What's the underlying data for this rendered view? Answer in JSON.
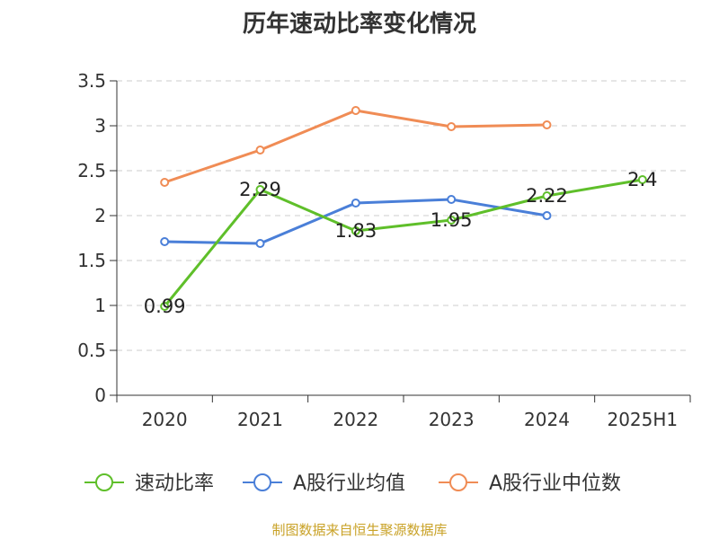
{
  "title": "历年速动比率变化情况",
  "source": "制图数据来自恒生聚源数据库",
  "chart_data": {
    "type": "line",
    "categories": [
      "2020",
      "2021",
      "2022",
      "2023",
      "2024",
      "2025H1"
    ],
    "y_ticks": [
      "0",
      "0.5",
      "1",
      "1.5",
      "2",
      "2.5",
      "3",
      "3.5"
    ],
    "ylim": [
      0,
      3.5
    ],
    "grid": true,
    "legend_position": "bottom",
    "series": [
      {
        "name": "速动比率",
        "color": "#5fbf2a",
        "values": [
          0.99,
          2.29,
          1.83,
          1.95,
          2.22,
          2.4
        ],
        "labels": [
          "0.99",
          "2.29",
          "1.83",
          "1.95",
          "2.22",
          "2.4"
        ]
      },
      {
        "name": "A股行业均值",
        "color": "#4a7fd8",
        "values": [
          1.71,
          1.69,
          2.14,
          2.18,
          2.0,
          null
        ],
        "labels": null
      },
      {
        "name": "A股行业中位数",
        "color": "#f08c55",
        "values": [
          2.37,
          2.73,
          3.17,
          2.99,
          3.01,
          null
        ],
        "labels": null
      }
    ]
  }
}
